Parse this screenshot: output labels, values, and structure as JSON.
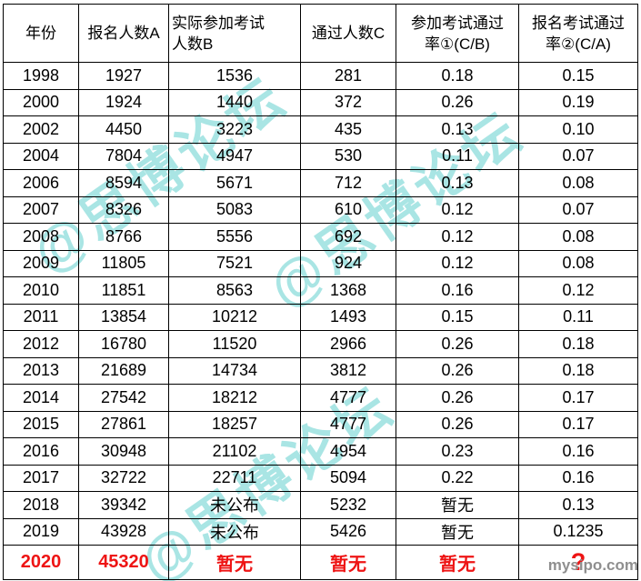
{
  "colors": {
    "background": "#ffffff",
    "text": "#000000",
    "border": "#000000",
    "highlight": "#ee1414",
    "watermark": "#a9e5e4",
    "credit": "#8f8f8f"
  },
  "watermark": {
    "text": "@思博论坛"
  },
  "site_credit": "mysipo.com",
  "chart_data": {
    "type": "table",
    "columns": [
      "年份",
      "报名人数A",
      "实际参加考试人数B",
      "通过人数C",
      "参加考试通过率①(C/B)",
      "报名考试通过率②(C/A)"
    ],
    "column_lines": [
      [
        "年份"
      ],
      [
        "报名人数A"
      ],
      [
        "实际参加考试",
        "人数B"
      ],
      [
        "通过人数C"
      ],
      [
        "参加考试通过",
        "率①(C/B)"
      ],
      [
        "报名考试通过",
        "率②(C/A)"
      ]
    ],
    "rows": [
      [
        "1998",
        "1927",
        "1536",
        "281",
        "0.18",
        "0.15"
      ],
      [
        "2000",
        "1924",
        "1440",
        "372",
        "0.26",
        "0.19"
      ],
      [
        "2002",
        "4450",
        "3223",
        "435",
        "0.13",
        "0.10"
      ],
      [
        "2004",
        "7804",
        "4947",
        "530",
        "0.11",
        "0.07"
      ],
      [
        "2006",
        "8594",
        "5671",
        "712",
        "0.13",
        "0.08"
      ],
      [
        "2007",
        "8326",
        "5083",
        "610",
        "0.12",
        "0.07"
      ],
      [
        "2008",
        "8766",
        "5556",
        "692",
        "0.12",
        "0.08"
      ],
      [
        "2009",
        "11805",
        "7521",
        "924",
        "0.12",
        "0.08"
      ],
      [
        "2010",
        "11851",
        "8563",
        "1368",
        "0.16",
        "0.12"
      ],
      [
        "2011",
        "13854",
        "10212",
        "1493",
        "0.15",
        "0.11"
      ],
      [
        "2012",
        "16780",
        "11520",
        "2966",
        "0.26",
        "0.18"
      ],
      [
        "2013",
        "21689",
        "14734",
        "3812",
        "0.26",
        "0.18"
      ],
      [
        "2014",
        "27542",
        "18212",
        "4777",
        "0.26",
        "0.17"
      ],
      [
        "2015",
        "27861",
        "18257",
        "4777",
        "0.26",
        "0.17"
      ],
      [
        "2016",
        "30948",
        "21102",
        "4954",
        "0.23",
        "0.16"
      ],
      [
        "2017",
        "32722",
        "22711",
        "5094",
        "0.22",
        "0.16"
      ],
      [
        "2018",
        "39342",
        "未公布",
        "5232",
        "暂无",
        "0.13"
      ],
      [
        "2019",
        "43928",
        "未公布",
        "5426",
        "暂无",
        "0.1235"
      ],
      [
        "2020",
        "45320",
        "暂无",
        "暂无",
        "暂无",
        "?"
      ]
    ],
    "highlight_row_index": 18
  }
}
